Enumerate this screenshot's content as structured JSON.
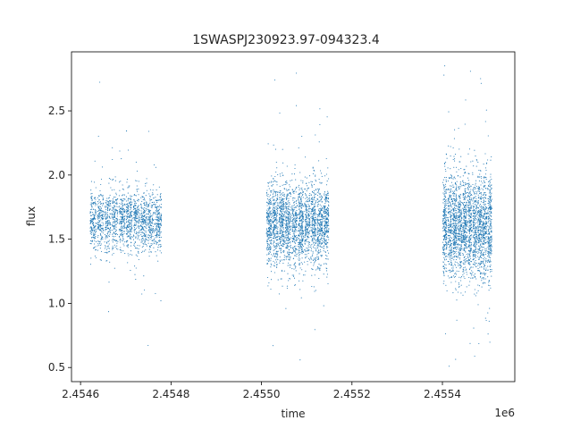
{
  "chart_data": {
    "type": "scatter",
    "title": "1SWASPJ230923.97-094323.4",
    "xlabel": "time",
    "ylabel": "flux",
    "x_offset_label": "1e6",
    "xlim": [
      2.45458,
      2.45556
    ],
    "ylim": [
      0.39,
      2.96
    ],
    "x_ticks": [
      2.4546,
      2.4548,
      2.455,
      2.4552,
      2.4554
    ],
    "x_tick_labels": [
      "2.4546",
      "2.4548",
      "2.4550",
      "2.4552",
      "2.4554"
    ],
    "y_ticks": [
      0.5,
      1.0,
      1.5,
      2.0,
      2.5
    ],
    "y_tick_labels": [
      "0.5",
      "1.0",
      "1.5",
      "2.0",
      "2.5"
    ],
    "grid": false,
    "marker_color": "#1f77b4",
    "series": [
      {
        "observing_seasons": [
          {
            "x_range": [
              2.45462,
              2.45478
            ],
            "flux_median": 1.65,
            "flux_spread": 0.12,
            "points": 1800
          },
          {
            "x_range": [
              2.45501,
              2.45515
            ],
            "flux_median": 1.62,
            "flux_spread": 0.16,
            "points": 2600
          },
          {
            "x_range": [
              2.4554,
              2.45551
            ],
            "flux_median": 1.6,
            "flux_spread": 0.2,
            "points": 2600
          }
        ]
      }
    ]
  }
}
